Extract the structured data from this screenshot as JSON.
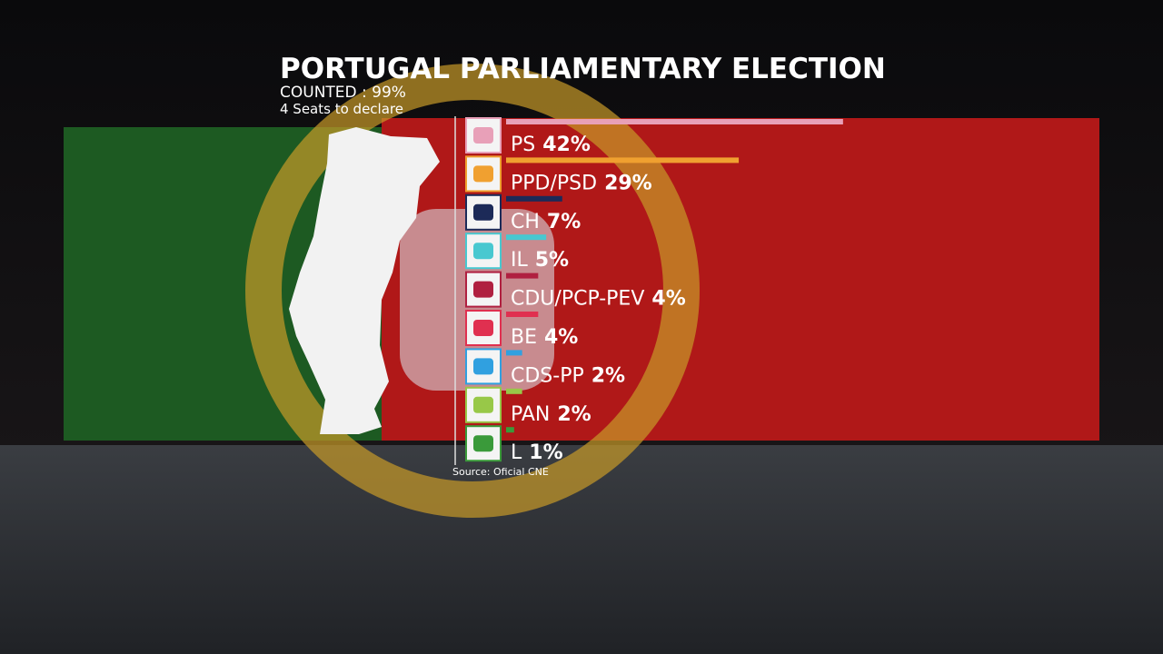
{
  "chart_data": {
    "type": "bar",
    "orientation": "horizontal",
    "title": "PORTUGAL PARLIAMENTARY ELECTION",
    "subtitle": "COUNTED : 99%",
    "note": "4 Seats to declare",
    "source": "Source: Oficial CNE",
    "categories": [
      "PS",
      "PPD/PSD",
      "CH",
      "IL",
      "CDU/PCP-PEV",
      "BE",
      "CDS-PP",
      "PAN",
      "L"
    ],
    "values": [
      42,
      29,
      7,
      5,
      4,
      4,
      2,
      2,
      1
    ],
    "value_labels": [
      "42%",
      "29%",
      "7%",
      "5%",
      "4%",
      "4%",
      "2%",
      "2%",
      "1%"
    ],
    "colors": [
      "#e8a0b8",
      "#f0a030",
      "#1c2a58",
      "#48c8d0",
      "#b02040",
      "#e03050",
      "#30a0e0",
      "#98c848",
      "#3a9a3a"
    ]
  }
}
